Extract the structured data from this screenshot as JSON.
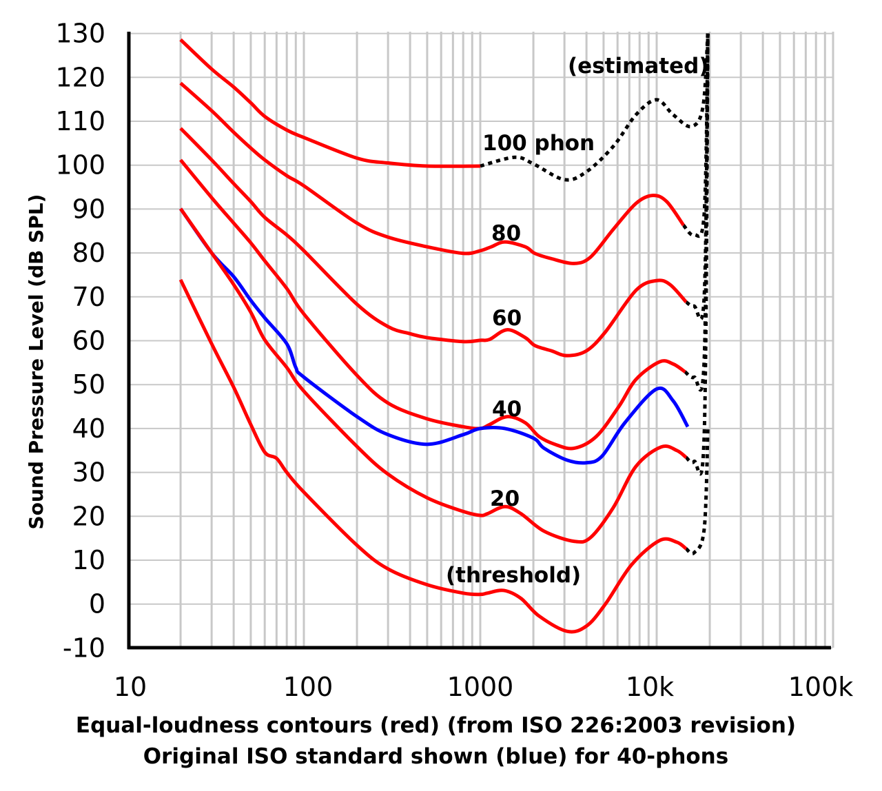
{
  "chart_data": {
    "type": "line",
    "title": "",
    "caption_lines": [
      "Equal-loudness contours (red) (from ISO 226:2003 revision)",
      "Original ISO standard shown (blue) for 40-phons"
    ],
    "ylabel": "Sound Pressure Level (dB SPL)",
    "xlabel": "",
    "x_scale": "log",
    "xlim": [
      10,
      100000
    ],
    "ylim": [
      -10,
      130
    ],
    "x_ticks": [
      10,
      100,
      1000,
      10000,
      100000
    ],
    "x_tick_labels": [
      "10",
      "100",
      "1000",
      "10k",
      "100k"
    ],
    "y_ticks": [
      130,
      120,
      110,
      100,
      90,
      80,
      70,
      60,
      50,
      40,
      30,
      20,
      10,
      0,
      -10
    ],
    "y_tick_labels": [
      "130",
      "120",
      "110",
      "100",
      "90",
      "80",
      "70",
      "60",
      "50",
      "40",
      "30",
      "20",
      "10",
      "0",
      "-10"
    ],
    "grid": true,
    "colors": {
      "iso2003": "#ff0000",
      "original": "#0000ff",
      "estimated": "#000000",
      "grid": "#c8c8c8"
    },
    "annotations": {
      "p100": "100 phon",
      "p80": "80",
      "p60": "60",
      "p40": "40",
      "p20": "20",
      "threshold": "(threshold)",
      "estimated": "(estimated)"
    },
    "series": [
      {
        "color": "#ff0000",
        "style": "solid",
        "points": [
          [
            20,
            128.6
          ],
          [
            30,
            121.9
          ],
          [
            40,
            117.8
          ],
          [
            50,
            114.2
          ],
          [
            60,
            111.1
          ],
          [
            80,
            108
          ],
          [
            100,
            106.3
          ],
          [
            200,
            101.6
          ],
          [
            300,
            100.5
          ],
          [
            500,
            99.8
          ],
          [
            1000,
            99.8
          ]
        ]
      },
      {
        "color": "#000000",
        "style": "dotted",
        "points": [
          [
            1000,
            99.8
          ],
          [
            1567,
            101.8
          ],
          [
            2000,
            100.3
          ],
          [
            3000,
            96.7
          ],
          [
            4000,
            98.5
          ],
          [
            5680,
            104.3
          ],
          [
            7640,
            111.5
          ],
          [
            10000,
            114.9
          ],
          [
            12400,
            111.5
          ],
          [
            15700,
            108.8
          ],
          [
            18300,
            113.3
          ],
          [
            19500,
            131
          ]
        ]
      },
      {
        "color": "#ff0000",
        "style": "solid",
        "points": [
          [
            20,
            118.7
          ],
          [
            30,
            112.4
          ],
          [
            40,
            107.5
          ],
          [
            50,
            103.9
          ],
          [
            60,
            101.2
          ],
          [
            80,
            97.6
          ],
          [
            100,
            95.3
          ],
          [
            200,
            86.8
          ],
          [
            300,
            83.6
          ],
          [
            500,
            81.4
          ],
          [
            800,
            79.9
          ],
          [
            1000,
            80.5
          ],
          [
            1155,
            81.4
          ],
          [
            1380,
            82.5
          ],
          [
            1800,
            81.4
          ],
          [
            2040,
            79.9
          ],
          [
            2530,
            78.7
          ],
          [
            3400,
            77.6
          ],
          [
            4230,
            79.1
          ],
          [
            5680,
            85.4
          ],
          [
            7640,
            91.3
          ],
          [
            9500,
            93.1
          ],
          [
            11400,
            91.7
          ],
          [
            14200,
            86.3
          ]
        ]
      },
      {
        "color": "#000000",
        "style": "dotted",
        "points": [
          [
            14200,
            86.3
          ],
          [
            16300,
            84.1
          ],
          [
            18600,
            89.0
          ],
          [
            19500,
            130
          ]
        ]
      },
      {
        "color": "#ff0000",
        "style": "solid",
        "points": [
          [
            20,
            108.4
          ],
          [
            30,
            101.2
          ],
          [
            40,
            95.8
          ],
          [
            50,
            91.7
          ],
          [
            60,
            88.1
          ],
          [
            80,
            84.1
          ],
          [
            100,
            80.5
          ],
          [
            200,
            68.3
          ],
          [
            300,
            63.2
          ],
          [
            400,
            61.6
          ],
          [
            500,
            60.7
          ],
          [
            800,
            59.8
          ],
          [
            1000,
            60.1
          ],
          [
            1130,
            60.3
          ],
          [
            1420,
            62.5
          ],
          [
            1800,
            60.7
          ],
          [
            2040,
            58.9
          ],
          [
            2530,
            57.7
          ],
          [
            3100,
            56.6
          ],
          [
            4000,
            57.7
          ],
          [
            5120,
            62.0
          ],
          [
            7640,
            71.5
          ],
          [
            10000,
            73.7
          ],
          [
            11900,
            72.8
          ],
          [
            14700,
            68.8
          ]
        ]
      },
      {
        "color": "#000000",
        "style": "dotted",
        "points": [
          [
            14700,
            68.8
          ],
          [
            16300,
            67.9
          ],
          [
            18600,
            70.1
          ],
          [
            19500,
            130
          ]
        ]
      },
      {
        "color": "#ff0000",
        "style": "solid",
        "points": [
          [
            20,
            101.2
          ],
          [
            30,
            92.6
          ],
          [
            40,
            86.8
          ],
          [
            50,
            82.3
          ],
          [
            60,
            78.2
          ],
          [
            80,
            71.9
          ],
          [
            100,
            66.1
          ],
          [
            200,
            52.1
          ],
          [
            300,
            45.8
          ],
          [
            500,
            42.2
          ],
          [
            800,
            40.4
          ],
          [
            1000,
            40.0
          ],
          [
            1130,
            40.9
          ],
          [
            1420,
            42.7
          ],
          [
            1800,
            41.3
          ],
          [
            2150,
            38.2
          ],
          [
            2650,
            36.4
          ],
          [
            3400,
            35.5
          ],
          [
            4550,
            38.2
          ],
          [
            6100,
            45.0
          ],
          [
            7640,
            51.2
          ],
          [
            10400,
            55.2
          ],
          [
            12400,
            54.7
          ],
          [
            14500,
            52.9
          ]
        ]
      },
      {
        "color": "#000000",
        "style": "dotted",
        "points": [
          [
            14500,
            52.9
          ],
          [
            16300,
            51.7
          ],
          [
            18600,
            55.7
          ],
          [
            19500,
            130
          ]
        ]
      },
      {
        "color": "#0000ff",
        "style": "solid",
        "points": [
          [
            20,
            90.1
          ],
          [
            30,
            80
          ],
          [
            40,
            74.6
          ],
          [
            50,
            69.2
          ],
          [
            60,
            65.2
          ],
          [
            80,
            59.3
          ],
          [
            90,
            53.9
          ],
          [
            100,
            51.7
          ],
          [
            200,
            42.7
          ],
          [
            300,
            38.6
          ],
          [
            500,
            36.4
          ],
          [
            800,
            38.6
          ],
          [
            1000,
            40
          ],
          [
            1380,
            40.0
          ],
          [
            2000,
            37.8
          ],
          [
            2300,
            35.5
          ],
          [
            3100,
            32.8
          ],
          [
            4000,
            32.2
          ],
          [
            4900,
            33.7
          ],
          [
            6600,
            41.3
          ],
          [
            10000,
            49.0
          ],
          [
            12400,
            46.3
          ],
          [
            15000,
            40.4
          ]
        ]
      },
      {
        "color": "#ff0000",
        "style": "solid",
        "points": [
          [
            20,
            90.1
          ],
          [
            30,
            80
          ],
          [
            40,
            72.8
          ],
          [
            50,
            66.5
          ],
          [
            60,
            60.2
          ],
          [
            80,
            53.9
          ],
          [
            100,
            48.5
          ],
          [
            200,
            35.9
          ],
          [
            300,
            29.6
          ],
          [
            500,
            24.2
          ],
          [
            800,
            21.1
          ],
          [
            1000,
            20.2
          ],
          [
            1100,
            20.6
          ],
          [
            1380,
            22.2
          ],
          [
            1700,
            20.6
          ],
          [
            2300,
            16.6
          ],
          [
            3400,
            14.3
          ],
          [
            4230,
            15.2
          ],
          [
            5680,
            22.0
          ],
          [
            7640,
            31.4
          ],
          [
            10600,
            35.8
          ],
          [
            13000,
            35.0
          ],
          [
            14700,
            33.4
          ]
        ]
      },
      {
        "color": "#000000",
        "style": "dotted",
        "points": [
          [
            14700,
            33.4
          ],
          [
            16300,
            32.5
          ],
          [
            18600,
            38.6
          ],
          [
            19500,
            130
          ]
        ]
      },
      {
        "color": "#ff0000",
        "style": "solid",
        "points": [
          [
            20,
            73.9
          ],
          [
            30,
            59.3
          ],
          [
            40,
            49.4
          ],
          [
            50,
            40.9
          ],
          [
            60,
            34.6
          ],
          [
            70,
            33.2
          ],
          [
            80,
            30.0
          ],
          [
            100,
            25.5
          ],
          [
            200,
            13.4
          ],
          [
            300,
            8.0
          ],
          [
            500,
            4.4
          ],
          [
            800,
            2.5
          ],
          [
            1000,
            2.2
          ],
          [
            1100,
            2.5
          ],
          [
            1360,
            3.1
          ],
          [
            1700,
            1.3
          ],
          [
            2150,
            -2.7
          ],
          [
            3100,
            -6.2
          ],
          [
            4000,
            -5.0
          ],
          [
            5120,
            0
          ],
          [
            7220,
            9.0
          ],
          [
            10400,
            14.5
          ],
          [
            13000,
            14.1
          ],
          [
            14700,
            12.6
          ]
        ]
      },
      {
        "color": "#000000",
        "style": "dotted",
        "points": [
          [
            14700,
            12.6
          ],
          [
            16300,
            11.7
          ],
          [
            18600,
            17.1
          ],
          [
            19500,
            40
          ]
        ]
      }
    ]
  }
}
